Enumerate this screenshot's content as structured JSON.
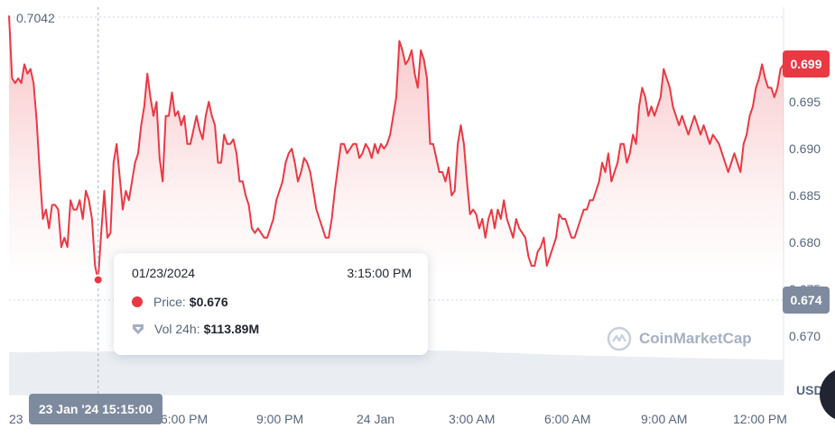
{
  "chart_data": {
    "type": "area",
    "y_ticks": [
      "0.695",
      "0.690",
      "0.685",
      "0.680",
      "0.675",
      "0.670"
    ],
    "y_tick_values": [
      0.695,
      0.69,
      0.685,
      0.68,
      0.675,
      0.67
    ],
    "ylim": [
      0.666,
      0.705
    ],
    "x_ticks": [
      "23",
      "6:00 PM",
      "9:00 PM",
      "24 Jan",
      "3:00 AM",
      "6:00 AM",
      "9:00 AM",
      "12:00 PM"
    ],
    "high_label": "0.7042",
    "high_value": 0.7042,
    "current_price": "0.699",
    "current_value": 0.699,
    "low_label": "0.674",
    "low_value": 0.674,
    "currency": "USD",
    "crosshair_label": "23 Jan '24 15:15:00",
    "series": [
      {
        "name": "Price",
        "color": "#ea3943",
        "values": [
          0.7042,
          0.6975,
          0.697,
          0.6975,
          0.697,
          0.699,
          0.698,
          0.6985,
          0.697,
          0.693,
          0.6875,
          0.6825,
          0.6835,
          0.6815,
          0.684,
          0.684,
          0.6835,
          0.6795,
          0.6805,
          0.6795,
          0.6845,
          0.6835,
          0.6835,
          0.6845,
          0.6825,
          0.6855,
          0.6845,
          0.6825,
          0.6775,
          0.676,
          0.681,
          0.6855,
          0.6805,
          0.681,
          0.6885,
          0.6905,
          0.687,
          0.6835,
          0.6855,
          0.6845,
          0.6865,
          0.6885,
          0.6895,
          0.6925,
          0.6945,
          0.698,
          0.6955,
          0.6935,
          0.695,
          0.689,
          0.6865,
          0.6935,
          0.6935,
          0.696,
          0.6935,
          0.694,
          0.6925,
          0.6935,
          0.6905,
          0.6905,
          0.692,
          0.6935,
          0.692,
          0.691,
          0.6935,
          0.695,
          0.6935,
          0.6925,
          0.6885,
          0.6885,
          0.6915,
          0.6905,
          0.6905,
          0.691,
          0.6895,
          0.6865,
          0.6865,
          0.685,
          0.684,
          0.6815,
          0.681,
          0.6815,
          0.681,
          0.6805,
          0.6805,
          0.6815,
          0.6825,
          0.6845,
          0.6855,
          0.6865,
          0.6885,
          0.6895,
          0.69,
          0.6885,
          0.6865,
          0.6875,
          0.689,
          0.6885,
          0.6875,
          0.6855,
          0.6835,
          0.6825,
          0.6815,
          0.6805,
          0.6805,
          0.6825,
          0.6855,
          0.688,
          0.6905,
          0.6905,
          0.6895,
          0.69,
          0.6905,
          0.6905,
          0.689,
          0.6895,
          0.6905,
          0.69,
          0.689,
          0.6905,
          0.6895,
          0.6905,
          0.69,
          0.6905,
          0.6915,
          0.6935,
          0.6955,
          0.7015,
          0.7005,
          0.699,
          0.6995,
          0.7005,
          0.698,
          0.6965,
          0.7005,
          0.6995,
          0.6975,
          0.6905,
          0.6905,
          0.689,
          0.6875,
          0.6875,
          0.6865,
          0.688,
          0.685,
          0.6855,
          0.6905,
          0.6925,
          0.6905,
          0.6865,
          0.683,
          0.6835,
          0.683,
          0.6815,
          0.6825,
          0.6805,
          0.6825,
          0.6835,
          0.6815,
          0.6835,
          0.6825,
          0.6845,
          0.6825,
          0.6815,
          0.6805,
          0.6825,
          0.6815,
          0.681,
          0.6805,
          0.6785,
          0.6775,
          0.6775,
          0.679,
          0.6795,
          0.6805,
          0.6775,
          0.6785,
          0.6795,
          0.6805,
          0.683,
          0.6825,
          0.6825,
          0.6815,
          0.6805,
          0.6805,
          0.6815,
          0.6825,
          0.6835,
          0.6835,
          0.6845,
          0.6845,
          0.6855,
          0.6865,
          0.6885,
          0.6875,
          0.6895,
          0.6865,
          0.6875,
          0.6885,
          0.6905,
          0.6905,
          0.6885,
          0.6895,
          0.6915,
          0.6905,
          0.6945,
          0.6965,
          0.6955,
          0.6935,
          0.6945,
          0.6935,
          0.6945,
          0.6955,
          0.6985,
          0.6975,
          0.6965,
          0.6945,
          0.6935,
          0.6925,
          0.6935,
          0.6925,
          0.6915,
          0.6925,
          0.6935,
          0.6925,
          0.6915,
          0.6925,
          0.6915,
          0.6905,
          0.6915,
          0.691,
          0.6905,
          0.6895,
          0.6885,
          0.6875,
          0.6885,
          0.6895,
          0.6885,
          0.6875,
          0.6905,
          0.6915,
          0.6935,
          0.6945,
          0.6965,
          0.6975,
          0.699,
          0.6975,
          0.6965,
          0.6965,
          0.6955,
          0.6965,
          0.6985,
          0.699
        ]
      }
    ],
    "volume_series": {
      "name": "Vol 24h",
      "color": "#eaedf2",
      "values": [
        118,
        118,
        117,
        118,
        118,
        119,
        119,
        119,
        120,
        120,
        120,
        119,
        119,
        120,
        120,
        120,
        121,
        121,
        121,
        122,
        122,
        122,
        121,
        122,
        122,
        122,
        123,
        123,
        124,
        123,
        123,
        124,
        124,
        125,
        124,
        125,
        124,
        124,
        124,
        125,
        125,
        124,
        125,
        124,
        124,
        123,
        124,
        124,
        123,
        124,
        124,
        124,
        125,
        125,
        125,
        125,
        124,
        124,
        123,
        123,
        123,
        122,
        122,
        122,
        122,
        121,
        120,
        120,
        119,
        118,
        117,
        116,
        116,
        115,
        114,
        113,
        113,
        112,
        111,
        110,
        110,
        109,
        109,
        108,
        108,
        107,
        107,
        107,
        106,
        106,
        105,
        105,
        104,
        104,
        103,
        103,
        102,
        102,
        102,
        101,
        101,
        100,
        100,
        100,
        99,
        99,
        99,
        98,
        98,
        97,
        97,
        97
      ]
    }
  },
  "tooltip": {
    "date": "01/23/2024",
    "time": "3:15:00 PM",
    "price_label": "Price:",
    "price_value": "$0.676",
    "volume_label": "Vol 24h:",
    "volume_value": "$113.89M"
  },
  "watermark": {
    "text": "CoinMarketCap"
  },
  "colors": {
    "line": "#ea3943",
    "fill_top": "#fbd3d6",
    "grid": "#cfd6e4",
    "axis_text": "#58667e",
    "low_tag": "#7e8a9e"
  }
}
